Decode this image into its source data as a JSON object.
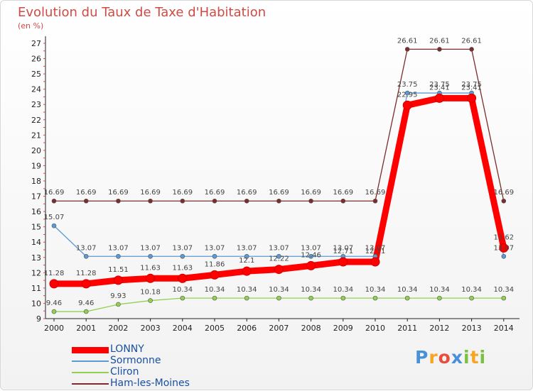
{
  "chart_data": {
    "type": "line",
    "title": "Evolution du Taux de Taxe d'Habitation",
    "subtitle": "(en %)",
    "x": [
      "2000",
      "2001",
      "2002",
      "2003",
      "2004",
      "2005",
      "2006",
      "2007",
      "2008",
      "2009",
      "2010",
      "2011",
      "2012",
      "2013",
      "2014"
    ],
    "ylim": [
      9,
      27
    ],
    "yticks": [
      "9",
      "10",
      "11",
      "12",
      "13",
      "14",
      "15",
      "16",
      "17",
      "18",
      "19",
      "20",
      "21",
      "22",
      "23",
      "24",
      "25",
      "26",
      "27"
    ],
    "grid": false,
    "legend_position": "bottom-left",
    "series": [
      {
        "name": "LONNY",
        "color": "#ff0000",
        "values": [
          11.28,
          11.28,
          11.51,
          11.63,
          11.63,
          11.86,
          12.1,
          12.22,
          12.46,
          12.71,
          12.71,
          22.95,
          23.41,
          23.41,
          13.62
        ],
        "labels": [
          "11.28",
          "11.28",
          "11.51",
          "11.63",
          "11.63",
          "11.86",
          "12.1",
          "12.22",
          "12.46",
          "12.71",
          "12.71",
          "22.95",
          "23.41",
          "23.41",
          "13.62"
        ]
      },
      {
        "name": "Sormonne",
        "color": "#5b9bd5",
        "values": [
          15.07,
          13.07,
          13.07,
          13.07,
          13.07,
          13.07,
          13.07,
          13.07,
          13.07,
          13.07,
          13.07,
          23.75,
          23.75,
          23.75,
          13.07
        ],
        "labels": [
          "15.07",
          "13.07",
          "13.07",
          "13.07",
          "13.07",
          "13.07",
          "13.07",
          "13.07",
          "13.07",
          "13.07",
          "13.07",
          "23.75",
          "23.75",
          "23.75",
          "13.07"
        ]
      },
      {
        "name": "Cliron",
        "color": "#92d050",
        "values": [
          9.46,
          9.46,
          9.93,
          10.18,
          10.34,
          10.34,
          10.34,
          10.34,
          10.34,
          10.34,
          10.34,
          10.34,
          10.34,
          10.34,
          10.34
        ],
        "labels": [
          "9.46",
          "9.46",
          "9.93",
          "10.18",
          "10.34",
          "10.34",
          "10.34",
          "10.34",
          "10.34",
          "10.34",
          "10.34",
          "10.34",
          "10.34",
          "10.34",
          "10.34"
        ]
      },
      {
        "name": "Ham-les-Moines",
        "color": "#7b2c2c",
        "values": [
          16.69,
          16.69,
          16.69,
          16.69,
          16.69,
          16.69,
          16.69,
          16.69,
          16.69,
          16.69,
          16.69,
          26.61,
          26.61,
          26.61,
          16.69
        ],
        "labels": [
          "16.69",
          "16.69",
          "16.69",
          "16.69",
          "16.69",
          "16.69",
          "16.69",
          "16.69",
          "16.69",
          "16.69",
          "16.69",
          "26.61",
          "26.61",
          "26.61",
          "16.69"
        ]
      }
    ]
  },
  "logo": {
    "letters": [
      "P",
      "r",
      "o",
      "x",
      "i",
      "t",
      "i"
    ],
    "colors": [
      "#4a90d9",
      "#f5a623",
      "#e94e3c",
      "#4a90d9",
      "#7ac143",
      "#f5a623",
      "#7ac143"
    ]
  }
}
